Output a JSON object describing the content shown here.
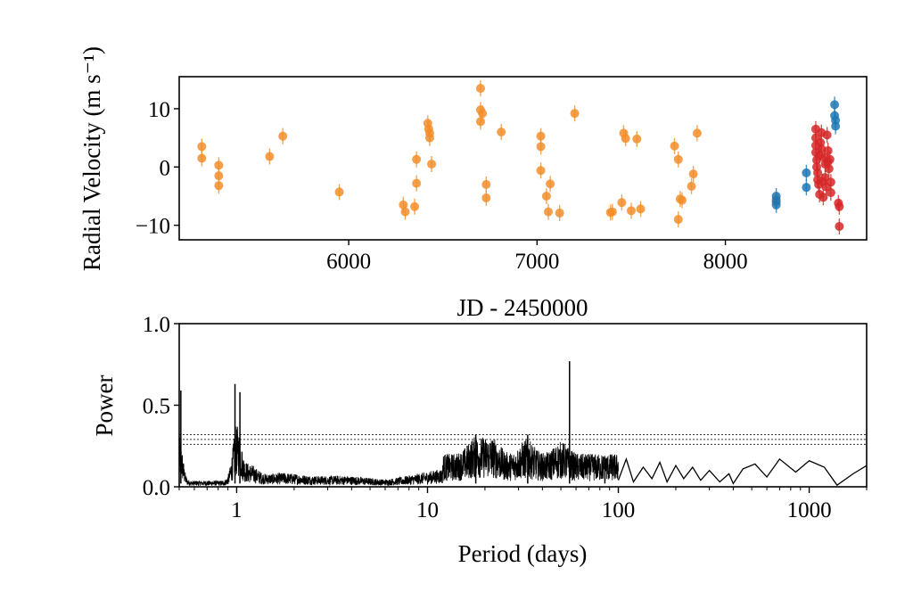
{
  "chart_data": [
    {
      "type": "scatter",
      "xlabel": "JD - 2450000",
      "ylabel": "Radial Velocity (m s⁻¹)",
      "xlim": [
        5100,
        8750
      ],
      "ylim": [
        -12.5,
        15.5
      ],
      "xticks": [
        6000,
        7000,
        8000
      ],
      "yticks": [
        -10,
        0,
        10
      ],
      "grid": false,
      "series": [
        {
          "color": "#f28e2b",
          "points": [
            [
              5220,
              3.5
            ],
            [
              5220,
              1.5
            ],
            [
              5310,
              0.3
            ],
            [
              5310,
              -1.5
            ],
            [
              5310,
              -3.2
            ],
            [
              5580,
              1.8
            ],
            [
              5650,
              5.3
            ],
            [
              5950,
              -4.3
            ],
            [
              6290,
              -6.5
            ],
            [
              6300,
              -7.7
            ],
            [
              6350,
              -6.8
            ],
            [
              6360,
              1.3
            ],
            [
              6360,
              -2.8
            ],
            [
              6420,
              7.5
            ],
            [
              6425,
              6.5
            ],
            [
              6430,
              5.0
            ],
            [
              6430,
              5.8
            ],
            [
              6440,
              0.5
            ],
            [
              6700,
              13.5
            ],
            [
              6700,
              9.8
            ],
            [
              6700,
              7.8
            ],
            [
              6710,
              9.2
            ],
            [
              6730,
              -3.0
            ],
            [
              6730,
              -5.3
            ],
            [
              6810,
              6.0
            ],
            [
              7020,
              5.3
            ],
            [
              7020,
              3.5
            ],
            [
              7020,
              -0.6
            ],
            [
              7050,
              -5.0
            ],
            [
              7060,
              -7.7
            ],
            [
              7070,
              -2.9
            ],
            [
              7120,
              -7.9
            ],
            [
              7200,
              9.2
            ],
            [
              7390,
              -7.8
            ],
            [
              7400,
              -7.7
            ],
            [
              7450,
              -6.1
            ],
            [
              7460,
              5.8
            ],
            [
              7470,
              4.9
            ],
            [
              7500,
              -7.5
            ],
            [
              7530,
              4.8
            ],
            [
              7550,
              -7.2
            ],
            [
              7730,
              3.6
            ],
            [
              7750,
              1.3
            ],
            [
              7750,
              -9.0
            ],
            [
              7760,
              -5.5
            ],
            [
              7770,
              -5.7
            ],
            [
              7820,
              -3.3
            ],
            [
              7830,
              -1.2
            ],
            [
              7850,
              5.8
            ],
            [
              8270,
              -5.5
            ],
            [
              8270,
              -6.0
            ]
          ]
        },
        {
          "color": "#1f77b4",
          "points": [
            [
              8270,
              -5.0
            ],
            [
              8270,
              -5.8
            ],
            [
              8270,
              -6.5
            ],
            [
              8430,
              -1.0
            ],
            [
              8430,
              -3.5
            ],
            [
              8580,
              10.7
            ],
            [
              8580,
              8.8
            ],
            [
              8585,
              8.0
            ],
            [
              8585,
              7.0
            ]
          ]
        },
        {
          "color": "#d62728",
          "points": [
            [
              8480,
              6.5
            ],
            [
              8480,
              5.0
            ],
            [
              8480,
              3.7
            ],
            [
              8480,
              2.5
            ],
            [
              8485,
              1.2
            ],
            [
              8485,
              0.0
            ],
            [
              8490,
              -1.0
            ],
            [
              8490,
              -2.2
            ],
            [
              8495,
              -3.0
            ],
            [
              8500,
              -4.7
            ],
            [
              8500,
              2.0
            ],
            [
              8505,
              4.2
            ],
            [
              8510,
              5.9
            ],
            [
              8510,
              3.1
            ],
            [
              8515,
              -2.5
            ],
            [
              8520,
              -5.2
            ],
            [
              8525,
              1.6
            ],
            [
              8530,
              0.5
            ],
            [
              8530,
              -1.8
            ],
            [
              8535,
              -3.4
            ],
            [
              8540,
              5.5
            ],
            [
              8545,
              2.8
            ],
            [
              8545,
              0.9
            ],
            [
              8550,
              -0.3
            ],
            [
              8555,
              1.3
            ],
            [
              8560,
              -4.4
            ],
            [
              8560,
              -2.6
            ],
            [
              8600,
              -6.2
            ],
            [
              8605,
              -6.8
            ],
            [
              8605,
              -10.2
            ]
          ]
        }
      ]
    },
    {
      "type": "line",
      "xlabel": "Period (days)",
      "ylabel": "Power",
      "xscale": "log",
      "xlim": [
        0.5,
        2000
      ],
      "ylim": [
        0.0,
        1.0
      ],
      "xticks": [
        1,
        10,
        100,
        1000
      ],
      "xtick_labels": [
        "1",
        "10",
        "100",
        "1000"
      ],
      "yticks": [
        0.0,
        0.5,
        1.0
      ],
      "ytick_labels": [
        "0.0",
        "0.5",
        "1.0"
      ],
      "grid": false,
      "false_alarm_levels": [
        0.32,
        0.29,
        0.26
      ],
      "peaks": [
        [
          0.51,
          0.59
        ],
        [
          0.98,
          0.63
        ],
        [
          1.04,
          0.58
        ],
        [
          17.9,
          0.32
        ],
        [
          33.5,
          0.32
        ],
        [
          55.5,
          0.77
        ],
        [
          85,
          0.18
        ]
      ],
      "long_period_trace": [
        [
          100,
          0.04
        ],
        [
          110,
          0.17
        ],
        [
          120,
          0.03
        ],
        [
          135,
          0.12
        ],
        [
          150,
          0.05
        ],
        [
          165,
          0.15
        ],
        [
          180,
          0.03
        ],
        [
          200,
          0.13
        ],
        [
          220,
          0.05
        ],
        [
          245,
          0.12
        ],
        [
          270,
          0.04
        ],
        [
          300,
          0.1
        ],
        [
          340,
          0.03
        ],
        [
          380,
          0.08
        ],
        [
          400,
          0.02
        ],
        [
          450,
          0.11
        ],
        [
          520,
          0.14
        ],
        [
          600,
          0.06
        ],
        [
          700,
          0.17
        ],
        [
          850,
          0.09
        ],
        [
          1000,
          0.16
        ],
        [
          1200,
          0.12
        ],
        [
          1400,
          0.01
        ],
        [
          1700,
          0.08
        ],
        [
          2000,
          0.13
        ]
      ]
    }
  ]
}
